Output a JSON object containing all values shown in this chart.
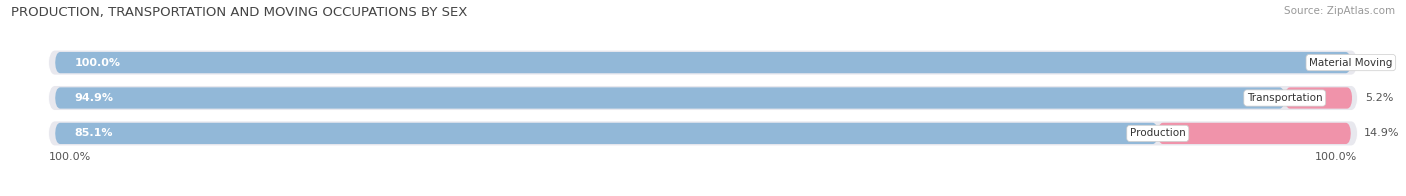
{
  "title": "PRODUCTION, TRANSPORTATION AND MOVING OCCUPATIONS BY SEX",
  "source": "Source: ZipAtlas.com",
  "categories": [
    "Material Moving",
    "Transportation",
    "Production"
  ],
  "male_values": [
    100.0,
    94.9,
    85.1
  ],
  "female_values": [
    0.0,
    5.2,
    14.9
  ],
  "male_color": "#92b8d8",
  "female_color": "#f093aa",
  "bar_bg_color": "#e8e8ee",
  "axis_label_left": "100.0%",
  "axis_label_right": "100.0%",
  "title_fontsize": 9.5,
  "source_fontsize": 7.5,
  "bar_label_fontsize": 8,
  "category_fontsize": 7.5,
  "tick_fontsize": 8,
  "background_color": "#ffffff",
  "bar_height": 0.58,
  "total_width": 100.0
}
